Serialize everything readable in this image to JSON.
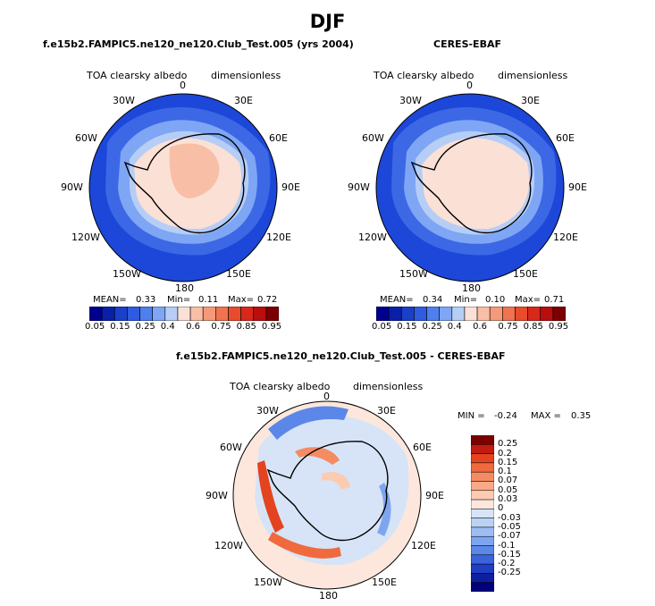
{
  "title": "DJF",
  "panels": [
    {
      "title": "f.e15b2.FAMPIC5.ne120_ne120.Club_Test.005 (yrs 2004)",
      "variable": "TOA clearsky albedo",
      "units": "dimensionless",
      "lon_labels": [
        "0",
        "30E",
        "60E",
        "90E",
        "120E",
        "150E",
        "180",
        "150W",
        "120W",
        "90W",
        "60W",
        "30W"
      ],
      "mean_label": "MEAN=",
      "mean": "0.33",
      "min_label": "Min=",
      "min": "0.11",
      "max_label": "Max=",
      "max": "0.72"
    },
    {
      "title": "CERES-EBAF",
      "variable": "TOA clearsky albedo",
      "units": "dimensionless",
      "lon_labels": [
        "0",
        "30E",
        "60E",
        "90E",
        "120E",
        "150E",
        "180",
        "150W",
        "120W",
        "90W",
        "60W",
        "30W"
      ],
      "mean_label": "MEAN=",
      "mean": "0.34",
      "min_label": "Min=",
      "min": "0.10",
      "max_label": "Max=",
      "max": "0.71"
    },
    {
      "title": "f.e15b2.FAMPIC5.ne120_ne120.Club_Test.005 - CERES-EBAF",
      "variable": "TOA clearsky albedo",
      "units": "dimensionless",
      "lon_labels": [
        "0",
        "30E",
        "60E",
        "90E",
        "120E",
        "150E",
        "180",
        "150W",
        "120W",
        "90W",
        "60W",
        "30W"
      ],
      "min_label": "MIN =",
      "min": "-0.24",
      "max_label": "MAX =",
      "max": "0.35"
    }
  ],
  "colorbar_albedo": {
    "colors": [
      "#00008f",
      "#0a1fa8",
      "#1a3fc8",
      "#2f5be0",
      "#4f7fee",
      "#7ea6f4",
      "#b6cdf6",
      "#fbe0d6",
      "#f8bea6",
      "#f59a78",
      "#f07350",
      "#e94b2d",
      "#d8281a",
      "#b80f0e",
      "#7c0000"
    ],
    "tick_labels": [
      "0.05",
      "0.15",
      "0.25",
      "0.4",
      "0.6",
      "0.75",
      "0.85",
      "0.95"
    ]
  },
  "colorbar_diff": {
    "colors": [
      "#7c0000",
      "#c01d10",
      "#e4431f",
      "#f06a3e",
      "#f58b62",
      "#f8a985",
      "#fbcbb2",
      "#fde7dc",
      "#d7e4f7",
      "#bcd2f5",
      "#9dbcf2",
      "#7ea6f0",
      "#5a87e8",
      "#3a63dc",
      "#1f3ec4",
      "#0d1fa0",
      "#02007c"
    ],
    "tick_labels": [
      "0.25",
      "0.2",
      "0.15",
      "0.1",
      "0.07",
      "0.05",
      "0.03",
      "0",
      "-0.03",
      "-0.05",
      "-0.07",
      "-0.1",
      "-0.15",
      "-0.2",
      "-0.25"
    ]
  },
  "chart_data": [
    {
      "type": "heatmap",
      "title": "f.e15b2.FAMPIC5.ne120_ne120.Club_Test.005 (yrs 2004)",
      "projection": "south polar stereographic",
      "variable": "TOA clearsky albedo",
      "units": "dimensionless",
      "mean": 0.33,
      "min": 0.11,
      "max": 0.72,
      "levels": [
        0.05,
        0.1,
        0.15,
        0.2,
        0.25,
        0.3,
        0.4,
        0.5,
        0.6,
        0.7,
        0.75,
        0.8,
        0.85,
        0.9,
        0.95
      ]
    },
    {
      "type": "heatmap",
      "title": "CERES-EBAF",
      "projection": "south polar stereographic",
      "variable": "TOA clearsky albedo",
      "units": "dimensionless",
      "mean": 0.34,
      "min": 0.1,
      "max": 0.71,
      "levels": [
        0.05,
        0.1,
        0.15,
        0.2,
        0.25,
        0.3,
        0.4,
        0.5,
        0.6,
        0.7,
        0.75,
        0.8,
        0.85,
        0.9,
        0.95
      ]
    },
    {
      "type": "heatmap",
      "title": "f.e15b2.FAMPIC5.ne120_ne120.Club_Test.005 - CERES-EBAF",
      "projection": "south polar stereographic",
      "variable": "TOA clearsky albedo",
      "units": "dimensionless",
      "min": -0.24,
      "max": 0.35,
      "levels": [
        0.25,
        0.2,
        0.15,
        0.1,
        0.07,
        0.05,
        0.03,
        0,
        -0.03,
        -0.05,
        -0.07,
        -0.1,
        -0.15,
        -0.2,
        -0.25
      ]
    }
  ]
}
